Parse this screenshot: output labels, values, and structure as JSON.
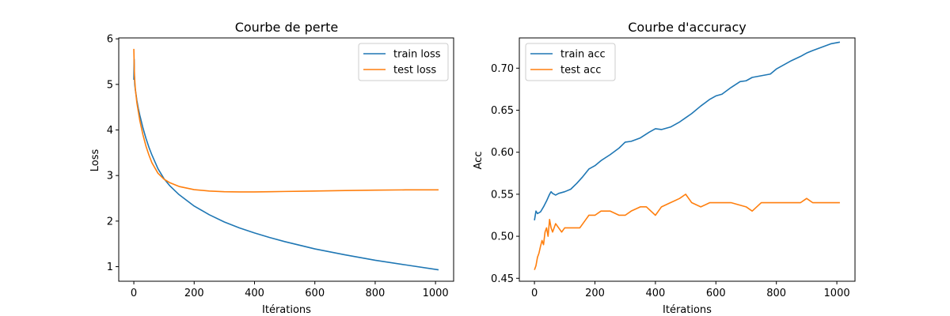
{
  "chart_data": [
    {
      "type": "line",
      "title": "Courbe de perte",
      "xlabel": "Itérations",
      "ylabel": "Loss",
      "xlim": [
        -50,
        1060
      ],
      "ylim": [
        0.68,
        6.02
      ],
      "xticks": [
        0,
        200,
        400,
        600,
        800,
        1000
      ],
      "yticks": [
        1,
        2,
        3,
        4,
        5,
        6
      ],
      "ytick_decimals": 0,
      "legend": "top-right",
      "grid": false,
      "series": [
        {
          "name": "train loss",
          "color": "#1f77b4",
          "x": [
            0,
            1,
            2,
            3,
            5,
            8,
            10,
            15,
            20,
            30,
            40,
            50,
            60,
            80,
            100,
            120,
            150,
            200,
            250,
            300,
            350,
            400,
            450,
            500,
            600,
            700,
            800,
            900,
            1010
          ],
          "y": [
            5.1,
            5.55,
            5.2,
            5.0,
            4.88,
            4.75,
            4.65,
            4.47,
            4.32,
            4.05,
            3.82,
            3.62,
            3.45,
            3.15,
            2.93,
            2.77,
            2.58,
            2.33,
            2.14,
            1.98,
            1.85,
            1.74,
            1.64,
            1.55,
            1.39,
            1.26,
            1.14,
            1.04,
            0.93
          ]
        },
        {
          "name": "test loss",
          "color": "#ff7f0e",
          "x": [
            0,
            1,
            2,
            5,
            10,
            20,
            30,
            40,
            50,
            60,
            80,
            100,
            120,
            150,
            200,
            250,
            300,
            350,
            400,
            450,
            500,
            600,
            700,
            800,
            900,
            1010
          ],
          "y": [
            5.78,
            5.5,
            5.2,
            4.9,
            4.6,
            4.2,
            3.9,
            3.65,
            3.45,
            3.28,
            3.05,
            2.92,
            2.84,
            2.76,
            2.69,
            2.66,
            2.645,
            2.64,
            2.64,
            2.645,
            2.65,
            2.66,
            2.67,
            2.68,
            2.685,
            2.685
          ]
        }
      ]
    },
    {
      "type": "line",
      "title": "Courbe d'accuracy",
      "xlabel": "Itérations",
      "ylabel": "Acc",
      "xlim": [
        -50,
        1060
      ],
      "ylim": [
        0.4465,
        0.736
      ],
      "xticks": [
        0,
        200,
        400,
        600,
        800,
        1000
      ],
      "yticks": [
        0.45,
        0.5,
        0.55,
        0.6,
        0.65,
        0.7
      ],
      "ytick_decimals": 2,
      "legend": "top-left",
      "grid": false,
      "series": [
        {
          "name": "train acc",
          "color": "#1f77b4",
          "x": [
            0,
            5,
            10,
            20,
            30,
            40,
            50,
            55,
            60,
            70,
            80,
            100,
            120,
            140,
            160,
            180,
            200,
            220,
            250,
            280,
            300,
            320,
            350,
            380,
            400,
            420,
            450,
            480,
            500,
            520,
            550,
            580,
            600,
            620,
            650,
            680,
            700,
            720,
            750,
            780,
            800,
            820,
            850,
            880,
            900,
            920,
            950,
            980,
            1010
          ],
          "y": [
            0.519,
            0.53,
            0.527,
            0.529,
            0.535,
            0.542,
            0.55,
            0.553,
            0.551,
            0.549,
            0.551,
            0.553,
            0.556,
            0.563,
            0.571,
            0.58,
            0.584,
            0.59,
            0.597,
            0.605,
            0.612,
            0.613,
            0.617,
            0.624,
            0.628,
            0.627,
            0.63,
            0.636,
            0.641,
            0.646,
            0.655,
            0.663,
            0.667,
            0.669,
            0.677,
            0.684,
            0.685,
            0.689,
            0.691,
            0.693,
            0.699,
            0.703,
            0.709,
            0.714,
            0.718,
            0.721,
            0.725,
            0.729,
            0.731
          ]
        },
        {
          "name": "test acc",
          "color": "#ff7f0e",
          "x": [
            0,
            5,
            10,
            15,
            20,
            25,
            30,
            35,
            40,
            45,
            50,
            55,
            60,
            70,
            80,
            90,
            100,
            120,
            150,
            170,
            180,
            200,
            220,
            250,
            280,
            300,
            320,
            350,
            370,
            400,
            420,
            450,
            480,
            500,
            520,
            550,
            580,
            600,
            650,
            700,
            720,
            750,
            800,
            850,
            880,
            900,
            920,
            950,
            1010
          ],
          "y": [
            0.46,
            0.465,
            0.475,
            0.48,
            0.488,
            0.495,
            0.49,
            0.505,
            0.51,
            0.5,
            0.52,
            0.51,
            0.505,
            0.515,
            0.51,
            0.505,
            0.51,
            0.51,
            0.51,
            0.52,
            0.525,
            0.525,
            0.53,
            0.53,
            0.525,
            0.525,
            0.53,
            0.535,
            0.535,
            0.525,
            0.535,
            0.54,
            0.545,
            0.55,
            0.54,
            0.535,
            0.54,
            0.54,
            0.54,
            0.535,
            0.53,
            0.54,
            0.54,
            0.54,
            0.54,
            0.545,
            0.54,
            0.54,
            0.54
          ]
        }
      ]
    }
  ]
}
